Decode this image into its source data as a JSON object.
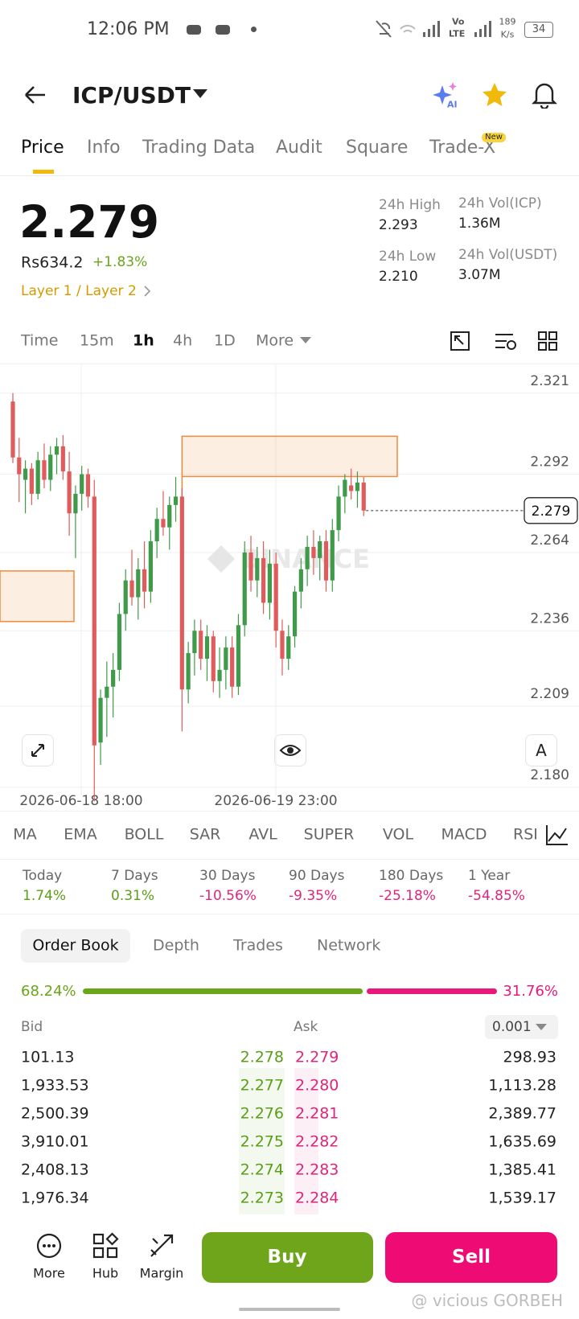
{
  "status_bar": {
    "time": "12:06 PM",
    "network_1": "Vo",
    "network_2": "LTE",
    "net_speed": "189",
    "net_unit": "K/s",
    "battery": "34"
  },
  "header": {
    "pair": "ICP/USDT",
    "ai_badge": "AI"
  },
  "tabs": [
    "Price",
    "Info",
    "Trading Data",
    "Audit",
    "Square",
    "Trade-X"
  ],
  "new_badge": "New",
  "ticker": {
    "price": "2.279",
    "fiat": "Rs634.2",
    "change": "+1.83%",
    "sector": "Layer 1 / Layer 2",
    "stats": [
      {
        "label": "24h High",
        "value": "2.293"
      },
      {
        "label": "24h Vol(ICP)",
        "value": "1.36M"
      },
      {
        "label": "24h Low",
        "value": "2.210"
      },
      {
        "label": "24h Vol(USDT)",
        "value": "3.07M"
      }
    ]
  },
  "intervals": [
    "Time",
    "15m",
    "1h",
    "4h",
    "1D",
    "More"
  ],
  "chart_data": {
    "type": "candlestick",
    "watermark": "BINANCE",
    "scale_button": "A",
    "up_color": "#3f9a4a",
    "down_color": "#e05b5b",
    "zone_color": "#f08a3c",
    "ylim": [
      2.1768,
      2.3293
    ],
    "yticks": [
      2.321,
      2.292,
      2.264,
      2.236,
      2.209,
      {
        "value": 2.18,
        "label": "2.180"
      }
    ],
    "xticks": [
      "2026-06-18 18:00",
      "2026-06-19 23:00"
    ],
    "last_price": 2.279,
    "zones": [
      {
        "low": 2.2912,
        "high": 2.3056
      },
      {
        "low": 2.2393,
        "high": 2.2574
      }
    ],
    "candles": [
      [
        2.318,
        2.321,
        2.296,
        2.298
      ],
      [
        2.298,
        2.305,
        2.282,
        2.292
      ],
      [
        2.29,
        2.297,
        2.278,
        2.294
      ],
      [
        2.294,
        2.296,
        2.281,
        2.285
      ],
      [
        2.285,
        2.3,
        2.283,
        2.297
      ],
      [
        2.297,
        2.303,
        2.287,
        2.29
      ],
      [
        2.29,
        2.302,
        2.286,
        2.299
      ],
      [
        2.299,
        2.305,
        2.292,
        2.302
      ],
      [
        2.302,
        2.306,
        2.29,
        2.293
      ],
      [
        2.293,
        2.3,
        2.27,
        2.278
      ],
      [
        2.278,
        2.288,
        2.262,
        2.285
      ],
      [
        2.285,
        2.295,
        2.279,
        2.292
      ],
      [
        2.292,
        2.294,
        2.28,
        2.284
      ],
      [
        2.284,
        2.29,
        2.175,
        2.195
      ],
      [
        2.196,
        2.215,
        2.188,
        2.212
      ],
      [
        2.212,
        2.225,
        2.198,
        2.216
      ],
      [
        2.216,
        2.228,
        2.205,
        2.222
      ],
      [
        2.222,
        2.246,
        2.218,
        2.242
      ],
      [
        2.242,
        2.258,
        2.236,
        2.254
      ],
      [
        2.254,
        2.265,
        2.245,
        2.248
      ],
      [
        2.248,
        2.262,
        2.24,
        2.258
      ],
      [
        2.258,
        2.268,
        2.244,
        2.25
      ],
      [
        2.25,
        2.272,
        2.246,
        2.268
      ],
      [
        2.268,
        2.28,
        2.262,
        2.276
      ],
      [
        2.276,
        2.286,
        2.27,
        2.273
      ],
      [
        2.273,
        2.284,
        2.265,
        2.281
      ],
      [
        2.281,
        2.291,
        2.275,
        2.284
      ],
      [
        2.284,
        2.287,
        2.2,
        2.215
      ],
      [
        2.215,
        2.232,
        2.21,
        2.228
      ],
      [
        2.228,
        2.24,
        2.22,
        2.236
      ],
      [
        2.236,
        2.24,
        2.222,
        2.226
      ],
      [
        2.226,
        2.238,
        2.218,
        2.234
      ],
      [
        2.234,
        2.236,
        2.214,
        2.218
      ],
      [
        2.218,
        2.23,
        2.212,
        2.222
      ],
      [
        2.222,
        2.234,
        2.215,
        2.23
      ],
      [
        2.23,
        2.234,
        2.212,
        2.216
      ],
      [
        2.216,
        2.242,
        2.213,
        2.238
      ],
      [
        2.238,
        2.268,
        2.234,
        2.264
      ],
      [
        2.264,
        2.27,
        2.25,
        2.254
      ],
      [
        2.254,
        2.266,
        2.248,
        2.262
      ],
      [
        2.262,
        2.268,
        2.242,
        2.246
      ],
      [
        2.246,
        2.265,
        2.24,
        2.26
      ],
      [
        2.26,
        2.264,
        2.23,
        2.236
      ],
      [
        2.236,
        2.24,
        2.22,
        2.226
      ],
      [
        2.226,
        2.238,
        2.222,
        2.234
      ],
      [
        2.234,
        2.252,
        2.23,
        2.25
      ],
      [
        2.25,
        2.262,
        2.244,
        2.258
      ],
      [
        2.258,
        2.27,
        2.252,
        2.266
      ],
      [
        2.266,
        2.272,
        2.256,
        2.262
      ],
      [
        2.262,
        2.27,
        2.254,
        2.268
      ],
      [
        2.268,
        2.272,
        2.25,
        2.254
      ],
      [
        2.254,
        2.276,
        2.25,
        2.272
      ],
      [
        2.272,
        2.288,
        2.268,
        2.284
      ],
      [
        2.284,
        2.292,
        2.278,
        2.29
      ],
      [
        2.288,
        2.294,
        2.283,
        2.286
      ],
      [
        2.286,
        2.293,
        2.28,
        2.289
      ],
      [
        2.289,
        2.291,
        2.277,
        2.279
      ]
    ]
  },
  "indicators": [
    "MA",
    "EMA",
    "BOLL",
    "SAR",
    "AVL",
    "SUPER",
    "VOL",
    "MACD",
    "RSI"
  ],
  "performance": [
    {
      "period": "Today",
      "change": "1.74%"
    },
    {
      "period": "7 Days",
      "change": "0.31%"
    },
    {
      "period": "30 Days",
      "change": "-10.56%"
    },
    {
      "period": "90 Days",
      "change": "-9.35%"
    },
    {
      "period": "180 Days",
      "change": "-25.18%"
    },
    {
      "period": "1 Year",
      "change": "-54.85%"
    }
  ],
  "order_book": {
    "tabs": [
      "Order Book",
      "Depth",
      "Trades",
      "Network"
    ],
    "bid_ratio": {
      "value": 68.24,
      "label": "68.24%"
    },
    "ask_ratio": {
      "value": 31.76,
      "label": "31.76%"
    },
    "bid_header": "Bid",
    "ask_header": "Ask",
    "precision": "0.001",
    "bids": [
      {
        "amount": "101.13",
        "price": "2.278"
      },
      {
        "amount": "1,933.53",
        "price": "2.277"
      },
      {
        "amount": "2,500.39",
        "price": "2.276"
      },
      {
        "amount": "3,910.01",
        "price": "2.275"
      },
      {
        "amount": "2,408.13",
        "price": "2.274"
      },
      {
        "amount": "1,976.34",
        "price": "2.273"
      }
    ],
    "asks": [
      {
        "price": "2.279",
        "amount": "298.93"
      },
      {
        "price": "2.280",
        "amount": "1,113.28"
      },
      {
        "price": "2.281",
        "amount": "2,389.77"
      },
      {
        "price": "2.282",
        "amount": "1,635.69"
      },
      {
        "price": "2.283",
        "amount": "1,385.41"
      },
      {
        "price": "2.284",
        "amount": "1,539.17"
      }
    ]
  },
  "footer": {
    "nav": [
      "More",
      "Hub",
      "Margin"
    ],
    "buy": "Buy",
    "sell": "Sell",
    "watermark": "@ vicious GORBEH"
  }
}
